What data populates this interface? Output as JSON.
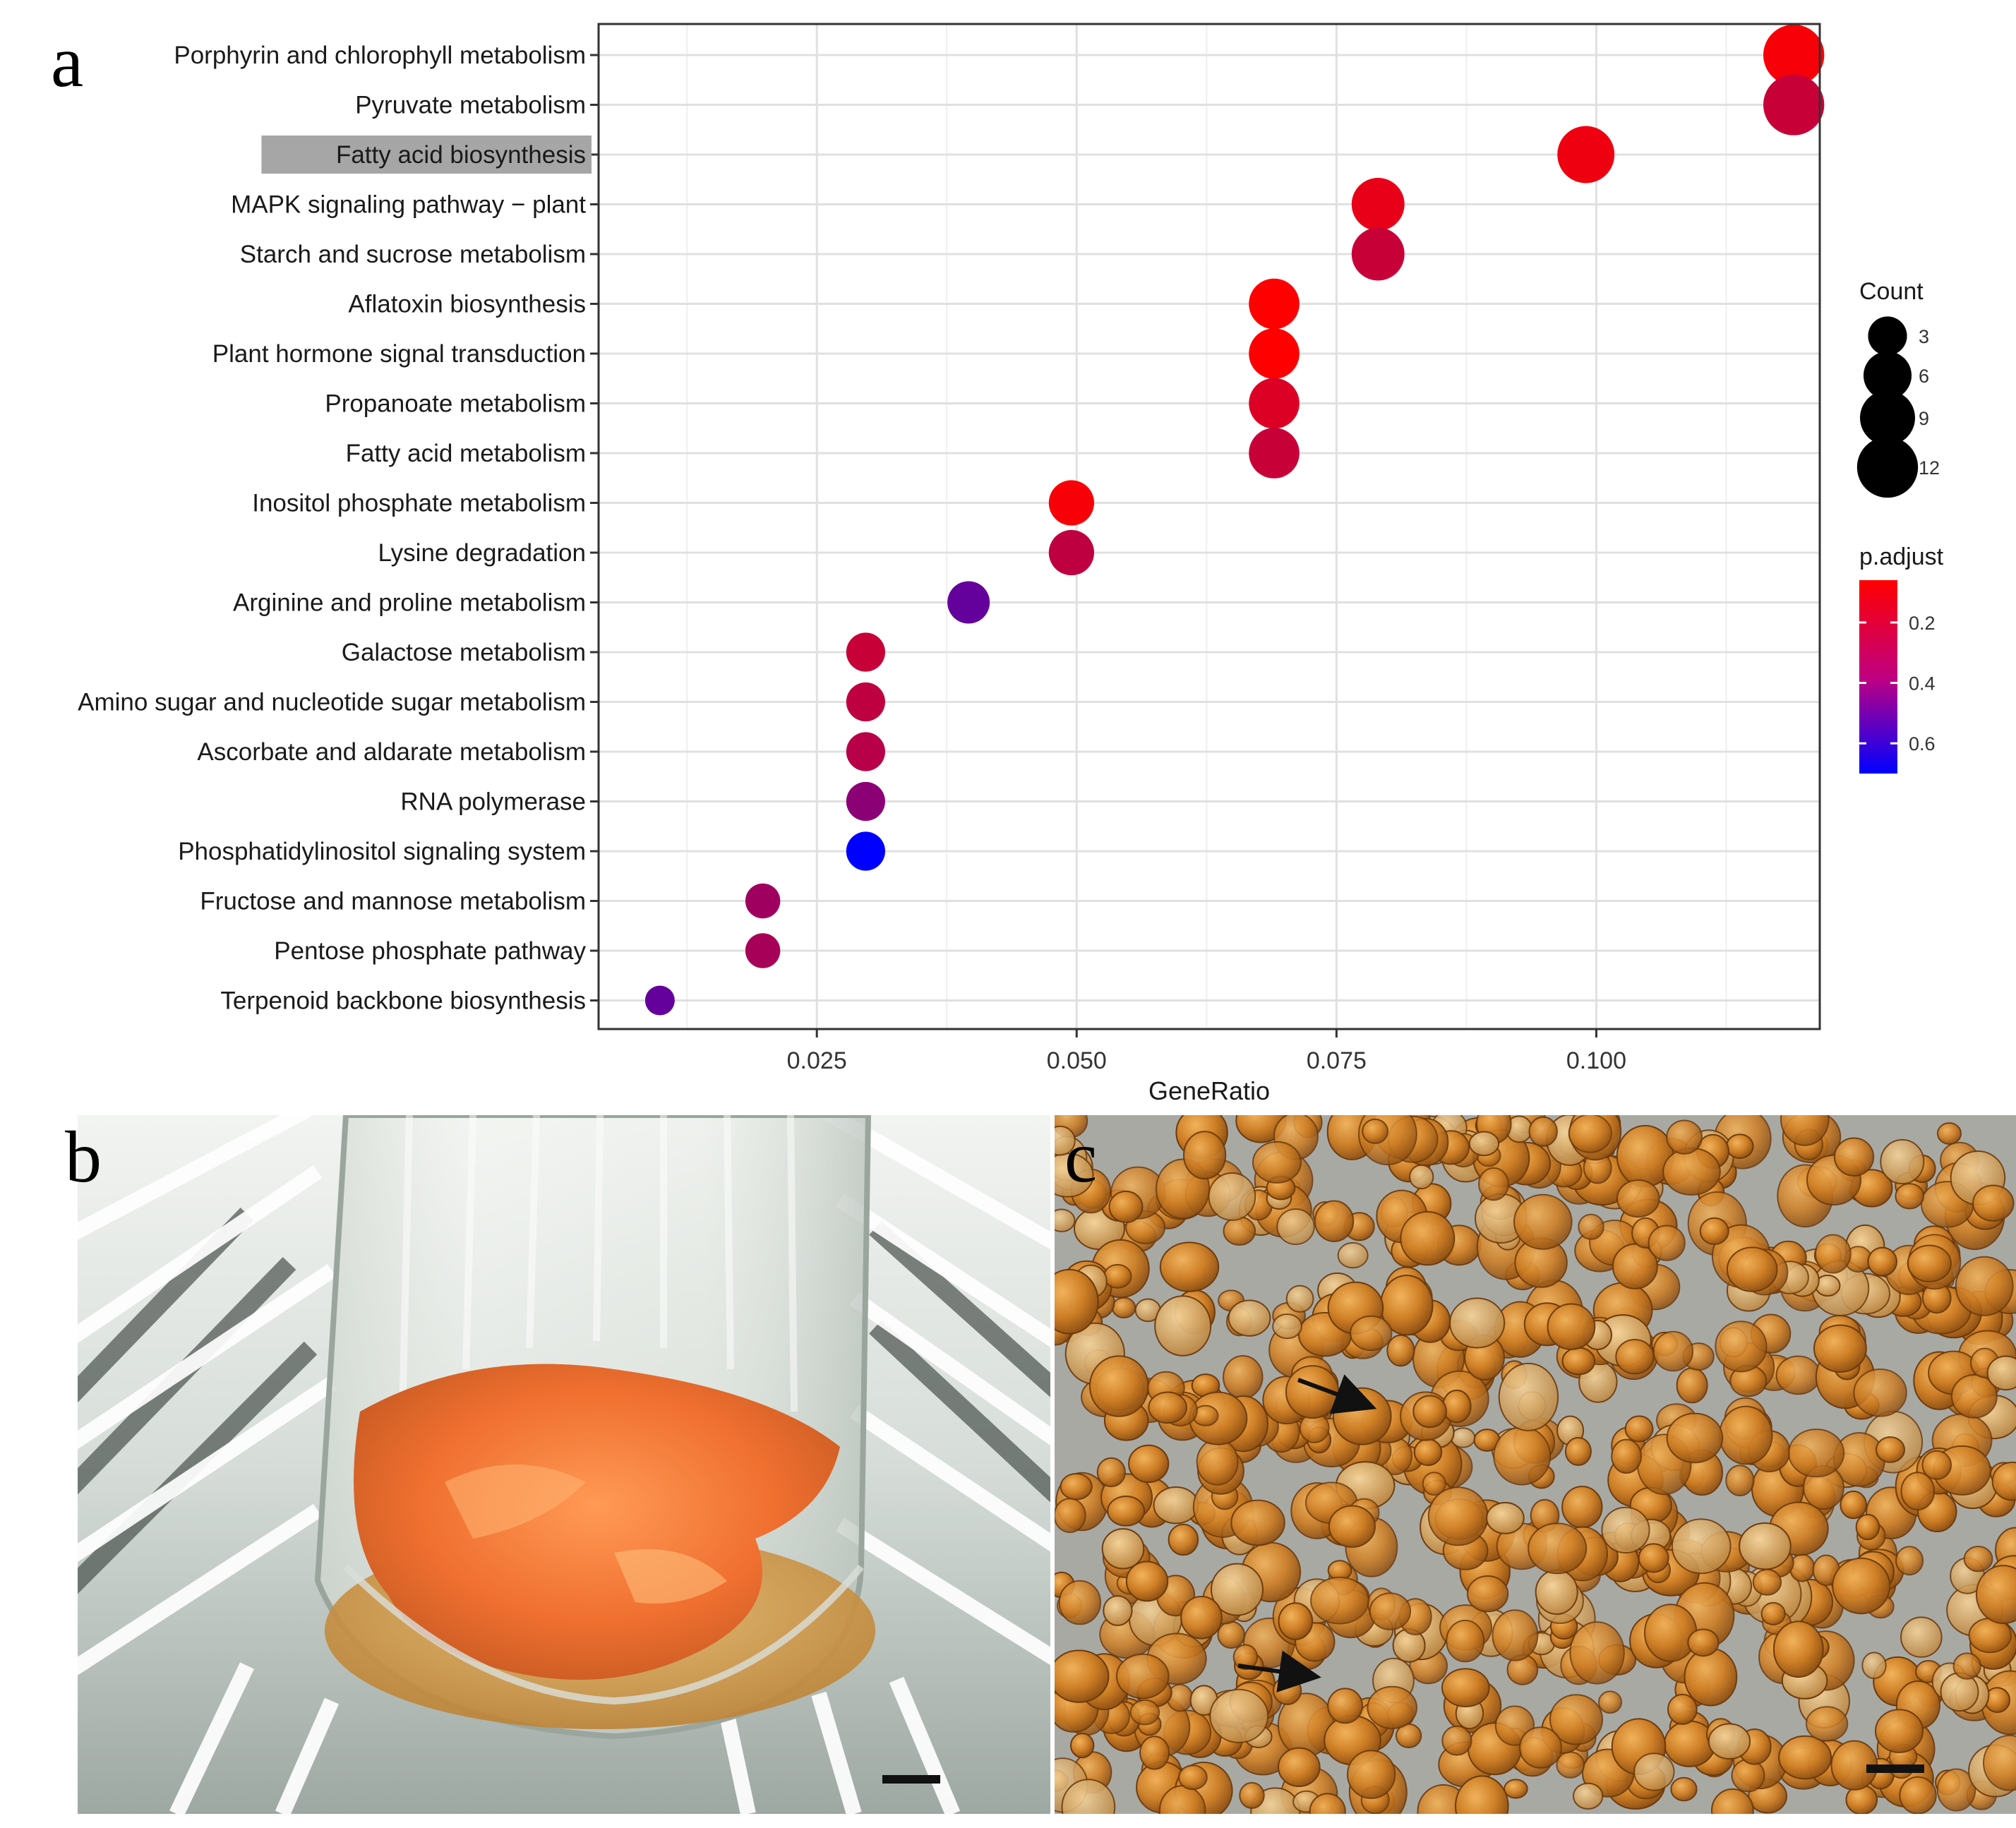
{
  "panels": {
    "a": "a",
    "b": "b",
    "c": "c"
  },
  "chart_data": {
    "type": "scatter",
    "title": "",
    "xlabel": "GeneRatio",
    "ylabel": "",
    "xlim": [
      0.004,
      0.1215
    ],
    "xticks": [
      0.025,
      0.05,
      0.075,
      0.1
    ],
    "xtick_labels": [
      "0.025",
      "0.050",
      "0.075",
      "0.100"
    ],
    "grid": true,
    "highlighted_category": "Fatty acid biosynthesis",
    "categories": [
      "Porphyrin and chlorophyll metabolism",
      "Pyruvate metabolism",
      "Fatty acid biosynthesis",
      "MAPK signaling pathway − plant",
      "Starch and sucrose metabolism",
      "Aflatoxin biosynthesis",
      "Plant hormone signal transduction",
      "Propanoate metabolism",
      "Fatty acid metabolism",
      "Inositol phosphate metabolism",
      "Lysine degradation",
      "Arginine and proline metabolism",
      "Galactose metabolism",
      "Amino sugar and nucleotide sugar metabolism",
      "Ascorbate and aldarate metabolism",
      "RNA polymerase",
      "Phosphatidylinositol signaling system",
      "Fructose and mannose metabolism",
      "Pentose phosphate pathway",
      "Terpenoid backbone biosynthesis"
    ],
    "gene_ratio": [
      0.119,
      0.119,
      0.099,
      0.079,
      0.079,
      0.069,
      0.069,
      0.069,
      0.069,
      0.0495,
      0.0495,
      0.0396,
      0.0297,
      0.0297,
      0.0297,
      0.0297,
      0.0297,
      0.0198,
      0.0198,
      0.0099
    ],
    "count": [
      12,
      12,
      10,
      8,
      8,
      7,
      7,
      7,
      7,
      5,
      5,
      4,
      3,
      3,
      3,
      3,
      3,
      2,
      2,
      1
    ],
    "p_adjust": [
      0.08,
      0.2,
      0.1,
      0.12,
      0.2,
      0.06,
      0.06,
      0.15,
      0.2,
      0.08,
      0.22,
      0.45,
      0.2,
      0.22,
      0.24,
      0.35,
      0.7,
      0.3,
      0.28,
      0.45
    ],
    "size_legend": {
      "title": "Count",
      "values": [
        3,
        6,
        9,
        12
      ],
      "labels": [
        "3",
        "6",
        "9",
        "12"
      ]
    },
    "color_legend": {
      "title": "p.adjust",
      "range": [
        0.06,
        0.7
      ],
      "ticks": [
        0.2,
        0.4,
        0.6
      ],
      "tick_labels": [
        "0.2",
        "0.4",
        "0.6"
      ],
      "low_color": "#ff0000",
      "high_color": "#0000ff"
    }
  },
  "colors": {
    "flask_liquid": "#f07030",
    "microscope_cells": "#c97a22",
    "microscope_background": "#a9a9a4",
    "shelf": "#e6ebe6",
    "highlight_box": "#a6a6a6"
  }
}
